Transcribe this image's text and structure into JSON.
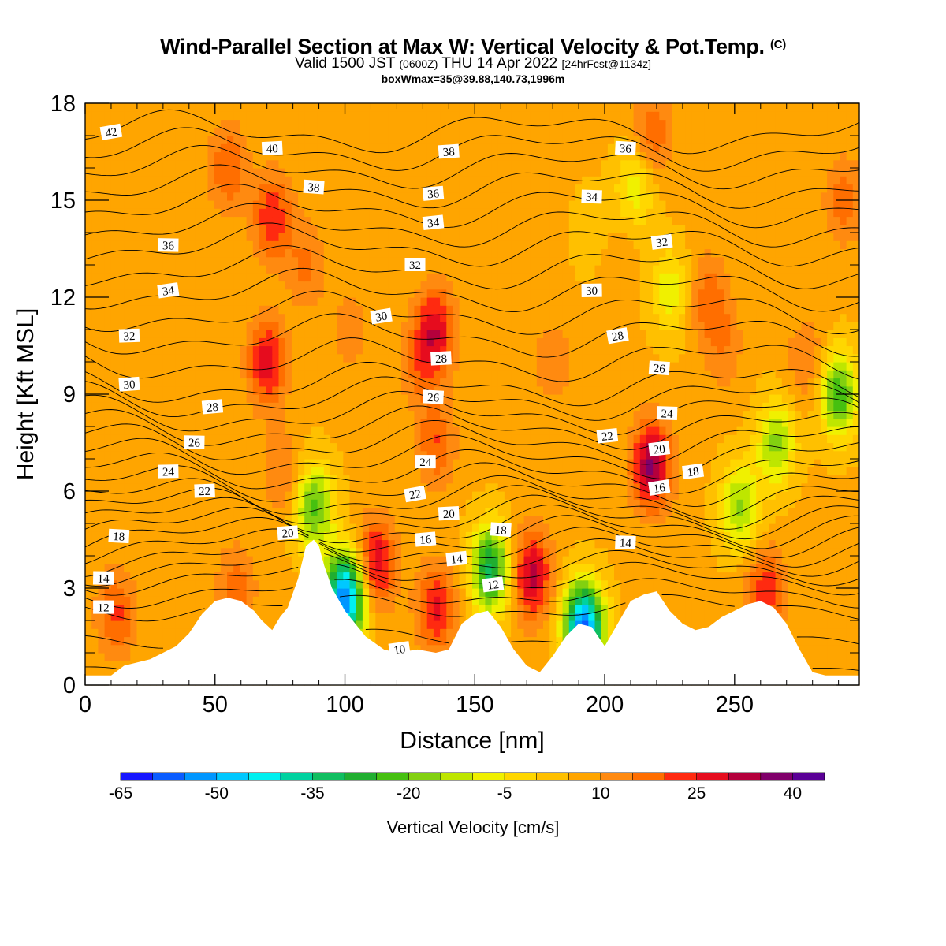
{
  "title": {
    "line1": "Wind-Parallel Section at Max W: Vertical Velocity & Pot.Temp.",
    "line1_mark": "(C)",
    "line2_a": "Valid 1500 JST",
    "line2_b": "(0600Z)",
    "line2_c": "THU 14 Apr 2022",
    "line2_d": "[24hrFcst@1134z]",
    "line3": "boxWmax=35@39.88,140.73,1996m"
  },
  "colors": {
    "palette": [
      "#1616ff",
      "#0a5cff",
      "#0096ff",
      "#00c8ff",
      "#00f0f0",
      "#00d2a0",
      "#10be60",
      "#20ae30",
      "#46c010",
      "#82d010",
      "#bee600",
      "#f0f000",
      "#ffd700",
      "#ffc000",
      "#ffa500",
      "#ff8a10",
      "#ff6e00",
      "#ff2a10",
      "#e60c1e",
      "#b4003c",
      "#80006a",
      "#5a0096"
    ],
    "terrain": "#ffffff",
    "contour": "#000000"
  },
  "chart_data": {
    "type": "heatmap",
    "xlabel": "Distance [nm]",
    "ylabel": "Height [Kft MSL]",
    "xlim": [
      0,
      298
    ],
    "ylim": [
      0,
      18
    ],
    "xticks": [
      "0",
      "50",
      "100",
      "150",
      "200",
      "250"
    ],
    "yticks": [
      "0",
      "3",
      "6",
      "9",
      "12",
      "15",
      "18"
    ],
    "colorbar": {
      "label": "Vertical Velocity [cm/s]",
      "min": -65,
      "step": 5,
      "bins": 22,
      "tick_labels": [
        "-65",
        "-50",
        "-35",
        "-20",
        "-5",
        "10",
        "25",
        "40"
      ]
    },
    "vertical_velocity_features": [
      {
        "x": 0,
        "y": 9,
        "w": 2
      },
      {
        "x": 12,
        "y": 2.2,
        "w": 15
      },
      {
        "x": 55,
        "y": 16,
        "w": 14
      },
      {
        "x": 58,
        "y": 3,
        "w": 12
      },
      {
        "x": 70,
        "y": 10,
        "w": 22
      },
      {
        "x": 72,
        "y": 14.5,
        "w": 18
      },
      {
        "x": 76,
        "y": 6.5,
        "w": 10
      },
      {
        "x": 85,
        "y": 13,
        "w": 10
      },
      {
        "x": 88,
        "y": 5.5,
        "w": -28
      },
      {
        "x": 100,
        "y": 2.7,
        "w": -62
      },
      {
        "x": 102,
        "y": 11,
        "w": 7
      },
      {
        "x": 112,
        "y": 3.8,
        "w": 24
      },
      {
        "x": 128,
        "y": 10,
        "w": 10
      },
      {
        "x": 135,
        "y": 11,
        "w": 22
      },
      {
        "x": 135,
        "y": 7.5,
        "w": 14
      },
      {
        "x": 135,
        "y": 2.4,
        "w": 20
      },
      {
        "x": 156,
        "y": 3.6,
        "w": -38
      },
      {
        "x": 158,
        "y": 13,
        "w": 3
      },
      {
        "x": 172,
        "y": 3.4,
        "w": 26
      },
      {
        "x": 180,
        "y": 10,
        "w": 8
      },
      {
        "x": 192,
        "y": 1.8,
        "w": -62
      },
      {
        "x": 195,
        "y": 14,
        "w": -5
      },
      {
        "x": 205,
        "y": 13,
        "w": 4
      },
      {
        "x": 212,
        "y": 15.5,
        "w": -15
      },
      {
        "x": 218,
        "y": 6.8,
        "w": 30
      },
      {
        "x": 218,
        "y": 17,
        "w": 14
      },
      {
        "x": 225,
        "y": 12.2,
        "w": -14
      },
      {
        "x": 240,
        "y": 12,
        "w": 12
      },
      {
        "x": 246,
        "y": 10.5,
        "w": 8
      },
      {
        "x": 252,
        "y": 5.5,
        "w": -22
      },
      {
        "x": 262,
        "y": 2.9,
        "w": 18
      },
      {
        "x": 266,
        "y": 7.5,
        "w": -22
      },
      {
        "x": 278,
        "y": 10,
        "w": 10
      },
      {
        "x": 290,
        "y": 9,
        "w": -30
      },
      {
        "x": 292,
        "y": 15,
        "w": 12
      }
    ],
    "terrain": {
      "x": [
        0,
        5,
        10,
        15,
        25,
        35,
        40,
        45,
        50,
        55,
        60,
        65,
        68,
        72,
        75,
        78,
        82,
        85,
        88,
        90,
        92,
        95,
        100,
        105,
        108,
        115,
        120,
        128,
        135,
        140,
        145,
        150,
        155,
        160,
        165,
        170,
        175,
        180,
        185,
        190,
        195,
        200,
        205,
        210,
        215,
        220,
        225,
        230,
        235,
        240,
        245,
        250,
        255,
        260,
        265,
        270,
        275,
        280,
        285,
        290,
        298
      ],
      "y": [
        0.3,
        0.3,
        0.3,
        0.6,
        0.8,
        1.2,
        1.6,
        2.2,
        2.6,
        2.7,
        2.6,
        2.3,
        2.0,
        1.7,
        2.1,
        2.4,
        3.3,
        4.3,
        4.5,
        4.3,
        3.7,
        3.0,
        2.3,
        1.8,
        1.5,
        1.1,
        1.0,
        1.1,
        1.0,
        1.1,
        1.9,
        2.2,
        2.3,
        1.8,
        1.1,
        0.6,
        0.4,
        0.9,
        1.5,
        1.9,
        1.8,
        1.2,
        1.9,
        2.6,
        2.8,
        2.9,
        2.3,
        1.9,
        1.7,
        1.8,
        2.1,
        2.3,
        2.5,
        2.6,
        2.4,
        1.9,
        1.1,
        0.4,
        0.3,
        0.3,
        0.3
      ]
    },
    "theta_contour_anchors": [
      {
        "y": 0.5,
        "t": 10
      },
      {
        "y": 2.4,
        "t": 12
      },
      {
        "y": 3.3,
        "t": 14
      },
      {
        "y": 4.6,
        "t": 18
      },
      {
        "y": 5.8,
        "t": 22
      },
      {
        "y": 6.6,
        "t": 24
      },
      {
        "y": 7.5,
        "t": 26
      },
      {
        "y": 8.4,
        "t": 28
      },
      {
        "y": 9.3,
        "t": 30
      },
      {
        "y": 10.8,
        "t": 32
      },
      {
        "y": 12.2,
        "t": 34
      },
      {
        "y": 13.6,
        "t": 36
      },
      {
        "y": 16.0,
        "t": 40
      },
      {
        "y": 17.1,
        "t": 42
      }
    ],
    "theta_contour_step": 1,
    "theta_labels": [
      {
        "text": "42",
        "x": 10,
        "y": 17.1
      },
      {
        "text": "40",
        "x": 72,
        "y": 16.6
      },
      {
        "text": "38",
        "x": 88,
        "y": 15.4
      },
      {
        "text": "38",
        "x": 140,
        "y": 16.5
      },
      {
        "text": "36",
        "x": 208,
        "y": 16.6
      },
      {
        "text": "36",
        "x": 134,
        "y": 15.2
      },
      {
        "text": "34",
        "x": 195,
        "y": 15.1
      },
      {
        "text": "34",
        "x": 134,
        "y": 14.3
      },
      {
        "text": "36",
        "x": 32,
        "y": 13.6
      },
      {
        "text": "32",
        "x": 222,
        "y": 13.7
      },
      {
        "text": "32",
        "x": 127,
        "y": 13.0
      },
      {
        "text": "34",
        "x": 32,
        "y": 12.2
      },
      {
        "text": "30",
        "x": 195,
        "y": 12.2
      },
      {
        "text": "30",
        "x": 114,
        "y": 11.4
      },
      {
        "text": "32",
        "x": 17,
        "y": 10.8
      },
      {
        "text": "28",
        "x": 205,
        "y": 10.8
      },
      {
        "text": "28",
        "x": 137,
        "y": 10.1
      },
      {
        "text": "26",
        "x": 221,
        "y": 9.8
      },
      {
        "text": "30",
        "x": 17,
        "y": 9.3
      },
      {
        "text": "26",
        "x": 134,
        "y": 8.9
      },
      {
        "text": "28",
        "x": 49,
        "y": 8.6
      },
      {
        "text": "24",
        "x": 224,
        "y": 8.4
      },
      {
        "text": "22",
        "x": 201,
        "y": 7.7
      },
      {
        "text": "26",
        "x": 42,
        "y": 7.5
      },
      {
        "text": "20",
        "x": 221,
        "y": 7.3
      },
      {
        "text": "24",
        "x": 131,
        "y": 6.9
      },
      {
        "text": "18",
        "x": 234,
        "y": 6.6
      },
      {
        "text": "24",
        "x": 32,
        "y": 6.6
      },
      {
        "text": "16",
        "x": 221,
        "y": 6.1
      },
      {
        "text": "22",
        "x": 46,
        "y": 6.0
      },
      {
        "text": "22",
        "x": 127,
        "y": 5.9
      },
      {
        "text": "20",
        "x": 140,
        "y": 5.3
      },
      {
        "text": "18",
        "x": 160,
        "y": 4.8
      },
      {
        "text": "20",
        "x": 78,
        "y": 4.7
      },
      {
        "text": "18",
        "x": 13,
        "y": 4.6
      },
      {
        "text": "16",
        "x": 131,
        "y": 4.5
      },
      {
        "text": "14",
        "x": 208,
        "y": 4.4
      },
      {
        "text": "14",
        "x": 143,
        "y": 3.9
      },
      {
        "text": "14",
        "x": 7,
        "y": 3.3
      },
      {
        "text": "12",
        "x": 157,
        "y": 3.1
      },
      {
        "text": "12",
        "x": 7,
        "y": 2.4
      },
      {
        "text": "10",
        "x": 121,
        "y": 1.1
      }
    ]
  }
}
